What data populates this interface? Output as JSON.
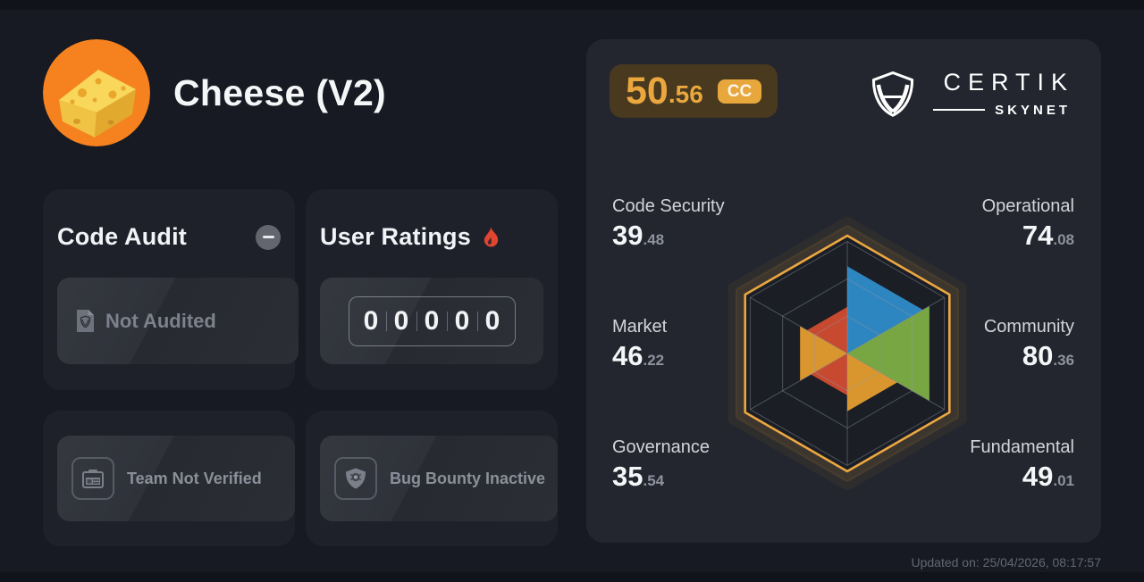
{
  "header": {
    "title": "Cheese (V2)",
    "logo_icon": "cheese-logo"
  },
  "cards": {
    "code_audit": {
      "title": "Code Audit",
      "collapse_icon": "minus-icon",
      "status_icon": "audit-report-icon",
      "status_label": "Not Audited"
    },
    "user_ratings": {
      "title": "User Ratings",
      "hot_icon": "flame-icon",
      "digits": [
        "0",
        "0",
        "0",
        "0",
        "0"
      ]
    },
    "team": {
      "icon": "id-card-icon",
      "label": "Team Not Verified"
    },
    "bug_bounty": {
      "icon": "bug-shield-icon",
      "label": "Bug Bounty Inactive"
    }
  },
  "skynet": {
    "score": {
      "int": "50",
      "dec": ".56",
      "grade": "CC"
    },
    "brand": {
      "shield_icon": "certik-shield-icon",
      "name": "CERTIK",
      "sub": "SKYNET"
    },
    "updated": "Updated on: 25/04/2026, 08:17:57"
  },
  "chart_data": {
    "type": "radar",
    "title": "Skynet security score breakdown",
    "max": 100,
    "grid_rings": 3,
    "legend_position": "around",
    "outline_color": "#eba742",
    "grid_color": "#4d5563",
    "metrics": [
      {
        "key": "code-security",
        "label": "Code Security",
        "value": 39.48,
        "int": "39",
        "dec": ".48",
        "color": "#c7492f",
        "sector": [
          5,
          0
        ],
        "side": "left",
        "row": 0
      },
      {
        "key": "operational",
        "label": "Operational",
        "value": 74.08,
        "int": "74",
        "dec": ".08",
        "color": "#2e86c0",
        "sector": [
          0,
          1
        ],
        "side": "right",
        "row": 0
      },
      {
        "key": "market",
        "label": "Market",
        "value": 46.22,
        "int": "46",
        "dec": ".22",
        "color": "#d9962e",
        "sector": [
          4,
          5
        ],
        "side": "left",
        "row": 1
      },
      {
        "key": "community",
        "label": "Community",
        "value": 80.36,
        "int": "80",
        "dec": ".36",
        "color": "#78a643",
        "sector": [
          1,
          2
        ],
        "side": "right",
        "row": 1
      },
      {
        "key": "governance",
        "label": "Governance",
        "value": 35.54,
        "int": "35",
        "dec": ".54",
        "color": "#c7492f",
        "sector": [
          3,
          4
        ],
        "side": "left",
        "row": 2
      },
      {
        "key": "fundamental",
        "label": "Fundamental",
        "value": 49.01,
        "int": "49",
        "dec": ".01",
        "color": "#d9962e",
        "sector": [
          2,
          3
        ],
        "side": "right",
        "row": 2
      }
    ]
  },
  "colors": {
    "page_bg": "#171a22",
    "panel_bg": "#23262f",
    "card_bg": "#1e212a",
    "accent_orange": "#e9a73d",
    "score_pill_bg": "#48391f",
    "radar_red": "#c7492f",
    "radar_blue": "#2e86c0",
    "radar_green": "#78a643",
    "radar_amber": "#d9962e",
    "flame_red": "#e0452f",
    "logo_orange": "#f5821f"
  }
}
